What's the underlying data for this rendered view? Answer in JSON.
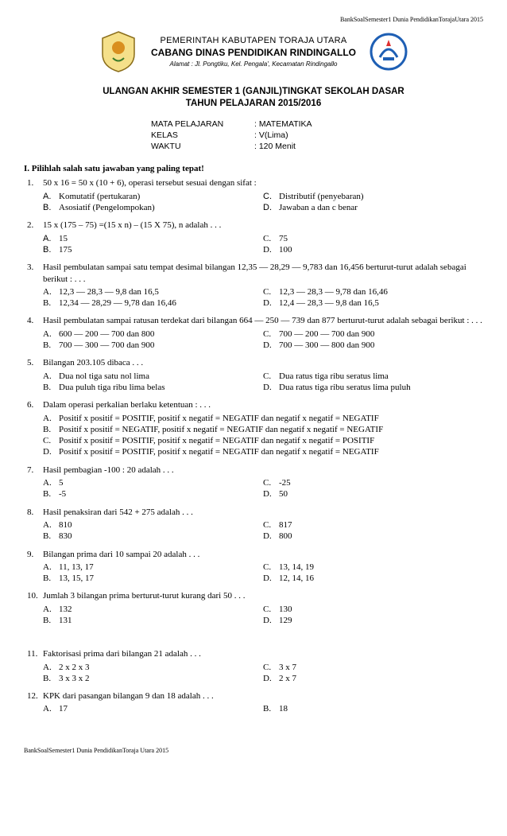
{
  "topbar": "BankSoalSemester1 Dunia PendidikanTorajaUtara 2015",
  "header": {
    "gov1": "PEMERINTAH KABUTAPEN TORAJA UTARA",
    "gov2": "CABANG DINAS PENDIDIKAN RINDINGALLO",
    "addr": "Alamat : Jl. Pongtiku, Kel. Pengala', Kecamatan Rindingallo"
  },
  "title1": "ULANGAN AKHIR SEMESTER 1 (GANJIL)TINGKAT SEKOLAH DASAR",
  "title2": "TAHUN PELAJARAN 2015/2016",
  "info": {
    "subject_label": "MATA PELAJARAN",
    "subject": ": MATEMATIKA",
    "class_label": "KELAS",
    "class": ": V(Lima)",
    "time_label": "WAKTU",
    "time": ": 120 Menit"
  },
  "section_head": "I.  Pilihlah salah satu jawaban yang paling tepat!",
  "questions": [
    {
      "n": "1.",
      "text": "50 x 16 = 50 x (10 + 6), operasi tersebut sesuai dengan sifat  :",
      "leftLetterClass": "opt-letter",
      "rightLetterClass": "opt-letter",
      "left": [
        [
          "A.",
          "Komutatif (pertukaran)"
        ],
        [
          "B.",
          "Asosiatif (Pengelompokan)"
        ]
      ],
      "right": [
        [
          "C.",
          "Distributif  (penyebaran)"
        ],
        [
          "D.",
          "Jawaban a dan c benar"
        ]
      ]
    },
    {
      "n": "2.",
      "text": "15 x (175 – 75) =(15 x n) – (15 X 75), n adalah . . .",
      "leftLetterClass": "opt-letter",
      "rightLetterClass": "opt-letter serif",
      "left": [
        [
          "A.",
          "15"
        ],
        [
          "B.",
          "175"
        ]
      ],
      "right": [
        [
          "C.",
          "75"
        ],
        [
          "D.",
          "100"
        ]
      ]
    },
    {
      "n": "3.",
      "text": "Hasil pembulatan sampai satu tempat desimal bilangan 12,35 — 28,29 — 9,783 dan 16,456 berturut-turut adalah sebagai berikut : . . .",
      "leftLetterClass": "opt-letter serif",
      "rightLetterClass": "opt-letter serif",
      "left": [
        [
          "A.",
          "12,3 — 28,3 — 9,8 dan 16,5"
        ],
        [
          "B.",
          "12,34 — 28,29 — 9,78 dan 16,46"
        ]
      ],
      "right": [
        [
          "C.",
          "12,3 — 28,3 — 9,78 dan 16,46"
        ],
        [
          "D.",
          "12,4 — 28,3 — 9,8 dan 16,5"
        ]
      ]
    },
    {
      "n": "4.",
      "text": "Hasil pembulatan sampai ratusan terdekat dari bilangan 664 — 250 — 739 dan 877 berturut-turut adalah sebagai berikut : . . .",
      "leftLetterClass": "opt-letter serif",
      "rightLetterClass": "opt-letter serif",
      "left": [
        [
          "A.",
          "600 — 200 — 700 dan 800"
        ],
        [
          "B.",
          "700 — 300 — 700 dan 900"
        ]
      ],
      "right": [
        [
          "C.",
          "700 — 200 — 700 dan 900"
        ],
        [
          "D.",
          "700 — 300 — 800 dan 900"
        ]
      ]
    },
    {
      "n": "5.",
      "text": "Bilangan  203.105  dibaca  . . .",
      "leftLetterClass": "opt-letter serif",
      "rightLetterClass": "opt-letter serif",
      "left": [
        [
          "A.",
          "Dua nol tiga satu nol lima"
        ],
        [
          "B.",
          "Dua puluh tiga ribu lima belas"
        ]
      ],
      "right": [
        [
          "C.",
          "Dua ratus tiga ribu seratus lima"
        ],
        [
          "D.",
          "Dua ratus tiga ribu seratus lima puluh"
        ]
      ]
    },
    {
      "n": "6.",
      "text": "Dalam  operasi perkalian  berlaku ketentuan  : . . .",
      "single": true,
      "leftLetterClass": "opt-letter serif",
      "left": [
        [
          "A.",
          "Positif  x positif  = POSITIF, positif  x negatif  = NEGATIF dan negatif  x negatif  = NEGATIF"
        ],
        [
          "B.",
          "Positif  x positif  = NEGATIF, positif  x negatif  = NEGATIF dan negatif  x negatif  = NEGATIF"
        ],
        [
          "C.",
          "Positif  x positif  = POSITIF, positif  x negatif  = NEGATIF dan negatif  x negatif  = POSITIF"
        ],
        [
          "D.",
          "Positif  x positif  = POSITIF, positif  x negatif  = NEGATIF dan negatif  x negatif  = NEGATIF"
        ]
      ]
    },
    {
      "n": "7.",
      "text": "Hasil  pembagian  -100 : 20 adalah  . . .",
      "leftLetterClass": "opt-letter serif",
      "rightLetterClass": "opt-letter serif",
      "left": [
        [
          "A.",
          "5"
        ],
        [
          "B.",
          "-5"
        ]
      ],
      "right": [
        [
          "C.",
          "-25"
        ],
        [
          "D.",
          "50"
        ]
      ]
    },
    {
      "n": "8.",
      "text": "Hasil penaksiran dari 542 + 275 adalah . . .",
      "leftLetterClass": "opt-letter serif",
      "rightLetterClass": "opt-letter serif",
      "left": [
        [
          "A.",
          "810"
        ],
        [
          "B.",
          "830"
        ]
      ],
      "right": [
        [
          "C.",
          "817"
        ],
        [
          "D.",
          "800"
        ]
      ]
    },
    {
      "n": "9.",
      "text": "Bilangan prima dari 10 sampai 20 adalah . . .",
      "leftLetterClass": "opt-letter serif",
      "rightLetterClass": "opt-letter serif",
      "left": [
        [
          "A.",
          "11, 13, 17"
        ],
        [
          "B.",
          "13, 15, 17"
        ]
      ],
      "right": [
        [
          "C.",
          "13, 14, 19"
        ],
        [
          "D.",
          "12, 14, 16"
        ]
      ]
    },
    {
      "n": "10.",
      "text": "Jumlah 3 bilangan prima berturut-turut kurang dari 50 . . .",
      "leftLetterClass": "opt-letter serif",
      "rightLetterClass": "opt-letter serif",
      "left": [
        [
          "A.",
          "132"
        ],
        [
          "B.",
          "131"
        ]
      ],
      "right": [
        [
          "C.",
          "130"
        ],
        [
          "D.",
          "129"
        ]
      ]
    },
    {
      "n": "11.",
      "text": "Faktorisasi  prima dari bilangan 21 adalah . . .",
      "leftLetterClass": "opt-letter serif",
      "rightLetterClass": "opt-letter serif",
      "left": [
        [
          "A.",
          "2 x 2 x 3"
        ],
        [
          "B.",
          "3 x 3 x 2"
        ]
      ],
      "right": [
        [
          "C.",
          "3 x 7"
        ],
        [
          "D.",
          "2 x 7"
        ]
      ]
    },
    {
      "n": "12.",
      "text": "KPK  dari pasangan bilangan  9 dan 18  adalah . . .",
      "leftLetterClass": "opt-letter serif",
      "rightLetterClass": "opt-letter serif",
      "left": [
        [
          "A.",
          "17"
        ]
      ],
      "right": [
        [
          "B.",
          "18"
        ]
      ]
    }
  ],
  "footer": "BankSoalSemester1 Dunia PendidikanToraja Utara 2015"
}
